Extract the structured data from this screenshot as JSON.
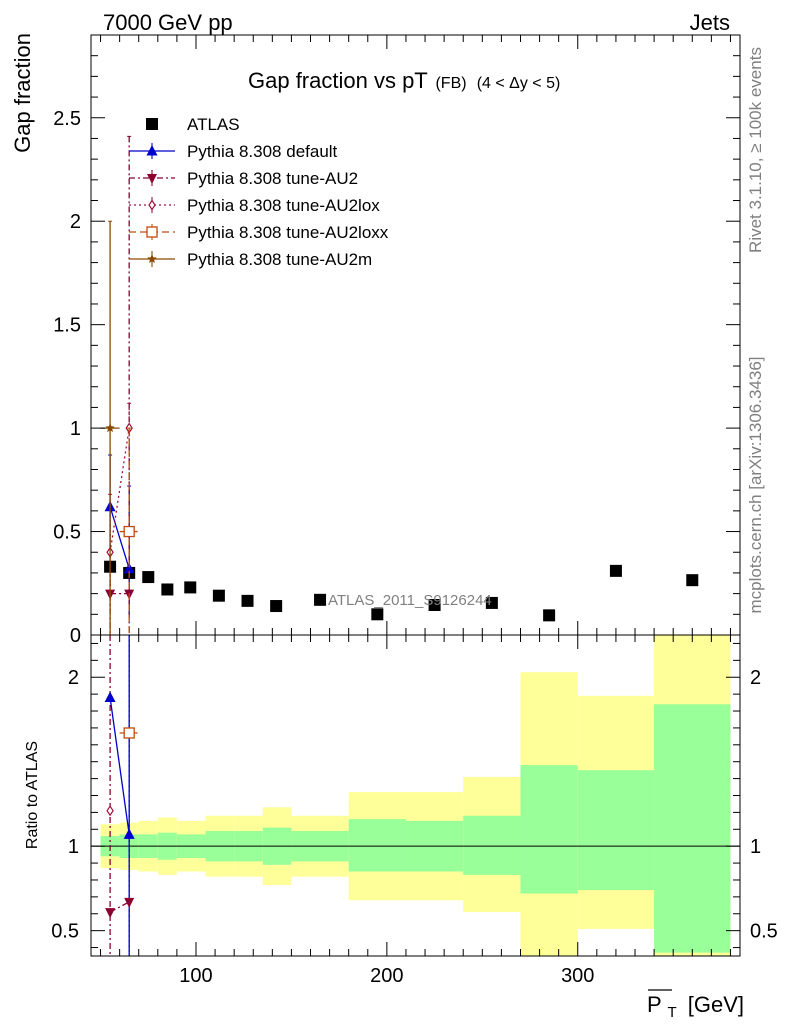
{
  "header": {
    "left": "7000 GeV pp",
    "right": "Jets"
  },
  "side_labels": {
    "upper": "Rivet 3.1.10, ≥ 100k events",
    "lower": "mcplots.cern.ch [arXiv:1306.3436]"
  },
  "watermark": "ATLAS_2011_S9126244",
  "colors": {
    "atlas": "#000000",
    "default": "#0000cc",
    "au2": "#8b0030",
    "au2lox": "#a0103a",
    "au2loxx": "#c04a10",
    "au2m": "#8b4a00",
    "band_inner": "#99ff99",
    "band_outer": "#ffff99"
  },
  "chart_data": [
    {
      "type": "scatter",
      "title": "Gap fraction vs pT",
      "title_sub": "(FB)",
      "title_range": "(4 < Δy < 5)",
      "xlabel": "P_T [GeV]",
      "xlabel_main": "P",
      "xlabel_sub": "T",
      "xlabel_unit": "[GeV]",
      "ylabel": "Gap fraction",
      "xlim": [
        45,
        385
      ],
      "ylim": [
        0,
        2.9
      ],
      "yticks": [
        0,
        0.5,
        1,
        1.5,
        2,
        2.5
      ],
      "ytick_labels": [
        "0",
        "0.5",
        "1",
        "1.5",
        "2",
        "2.5"
      ],
      "xticks": [
        100,
        200,
        300
      ],
      "legend_position": "top-left",
      "legend": [
        {
          "key": "atlas",
          "label": "ATLAS"
        },
        {
          "key": "default",
          "label": "Pythia 8.308 default"
        },
        {
          "key": "au2",
          "label": "Pythia 8.308 tune-AU2"
        },
        {
          "key": "au2lox",
          "label": "Pythia 8.308 tune-AU2lox"
        },
        {
          "key": "au2loxx",
          "label": "Pythia 8.308 tune-AU2loxx"
        },
        {
          "key": "au2m",
          "label": "Pythia 8.308 tune-AU2m"
        }
      ],
      "series": [
        {
          "key": "atlas",
          "name": "ATLAS",
          "x": [
            55,
            65,
            75,
            85,
            97,
            112,
            127,
            142,
            165,
            195,
            225,
            255,
            285,
            320,
            360
          ],
          "y": [
            0.33,
            0.3,
            0.28,
            0.22,
            0.23,
            0.19,
            0.165,
            0.14,
            0.17,
            0.1,
            0.145,
            0.155,
            0.095,
            0.31,
            0.265
          ]
        },
        {
          "key": "default",
          "name": "Pythia 8.308 default",
          "x": [
            55,
            65
          ],
          "y": [
            0.62,
            0.32
          ],
          "yerr_low": [
            0.25,
            0.22
          ],
          "yerr_high": [
            0.25,
            0.4
          ]
        },
        {
          "key": "au2",
          "name": "Pythia 8.308 tune-AU2",
          "x": [
            55,
            65
          ],
          "y": [
            0.2,
            0.2
          ],
          "yerr_low": [
            0.2,
            0.2
          ],
          "yerr_high": [
            0.2,
            2.21
          ]
        },
        {
          "key": "au2lox",
          "name": "Pythia 8.308 tune-AU2lox",
          "x": [
            55,
            65
          ],
          "y": [
            0.4,
            1.0
          ],
          "yerr_low": [
            0.28,
            0.6
          ],
          "yerr_high": [
            0.28,
            0.12
          ]
        },
        {
          "key": "au2loxx",
          "name": "Pythia 8.308 tune-AU2loxx",
          "x": [
            65
          ],
          "y": [
            0.5
          ],
          "xerr": [
            5
          ],
          "yerr_low": [
            0.5
          ],
          "yerr_high": [
            0.5
          ]
        },
        {
          "key": "au2m",
          "name": "Pythia 8.308 tune-AU2m",
          "x": [
            55
          ],
          "y": [
            1.0
          ],
          "xerr": [
            5
          ],
          "yerr_low": [
            1.0
          ],
          "yerr_high": [
            1.0
          ]
        }
      ]
    },
    {
      "type": "line",
      "ylabel": "Ratio to ATLAS",
      "xlim": [
        45,
        385
      ],
      "ylim": [
        0.35,
        2.25
      ],
      "yticks": [
        0.5,
        1,
        2
      ],
      "ytick_labels": [
        "0.5",
        "1",
        "2"
      ],
      "xticks": [
        100,
        200,
        300
      ],
      "xtick_labels": [
        "100",
        "200",
        "300"
      ],
      "reference_line": 1,
      "bands": [
        {
          "x0": 50,
          "x1": 60,
          "inner": [
            0.94,
            1.06
          ],
          "outer": [
            0.87,
            1.13
          ]
        },
        {
          "x0": 60,
          "x1": 70,
          "inner": [
            0.93,
            1.07
          ],
          "outer": [
            0.86,
            1.14
          ]
        },
        {
          "x0": 70,
          "x1": 80,
          "inner": [
            0.93,
            1.07
          ],
          "outer": [
            0.85,
            1.15
          ]
        },
        {
          "x0": 80,
          "x1": 90,
          "inner": [
            0.92,
            1.08
          ],
          "outer": [
            0.83,
            1.17
          ]
        },
        {
          "x0": 90,
          "x1": 105,
          "inner": [
            0.93,
            1.07
          ],
          "outer": [
            0.85,
            1.15
          ]
        },
        {
          "x0": 105,
          "x1": 120,
          "inner": [
            0.91,
            1.09
          ],
          "outer": [
            0.82,
            1.18
          ]
        },
        {
          "x0": 120,
          "x1": 135,
          "inner": [
            0.91,
            1.09
          ],
          "outer": [
            0.82,
            1.18
          ]
        },
        {
          "x0": 135,
          "x1": 150,
          "inner": [
            0.89,
            1.11
          ],
          "outer": [
            0.77,
            1.23
          ]
        },
        {
          "x0": 150,
          "x1": 180,
          "inner": [
            0.91,
            1.09
          ],
          "outer": [
            0.82,
            1.18
          ]
        },
        {
          "x0": 180,
          "x1": 210,
          "inner": [
            0.85,
            1.16
          ],
          "outer": [
            0.68,
            1.32
          ]
        },
        {
          "x0": 210,
          "x1": 240,
          "inner": [
            0.85,
            1.15
          ],
          "outer": [
            0.68,
            1.32
          ]
        },
        {
          "x0": 240,
          "x1": 270,
          "inner": [
            0.83,
            1.18
          ],
          "outer": [
            0.61,
            1.41
          ]
        },
        {
          "x0": 270,
          "x1": 300,
          "inner": [
            0.72,
            1.48
          ],
          "outer": [
            0.35,
            2.03
          ]
        },
        {
          "x0": 300,
          "x1": 340,
          "inner": [
            0.74,
            1.45
          ],
          "outer": [
            0.51,
            1.89
          ]
        },
        {
          "x0": 340,
          "x1": 380,
          "inner": [
            0.37,
            1.84
          ],
          "outer": [
            0.35,
            2.25
          ]
        }
      ],
      "series": [
        {
          "key": "default",
          "name": "Pythia 8.308 default",
          "x": [
            55,
            65
          ],
          "y": [
            1.88,
            1.07
          ]
        },
        {
          "key": "au2",
          "name": "Pythia 8.308 tune-AU2",
          "x": [
            55,
            65
          ],
          "y": [
            0.61,
            0.67
          ]
        },
        {
          "key": "au2lox",
          "name": "Pythia 8.308 tune-AU2lox",
          "x": [
            55
          ],
          "y": [
            1.21
          ]
        },
        {
          "key": "au2loxx",
          "name": "Pythia 8.308 tune-AU2loxx",
          "x": [
            65
          ],
          "y": [
            1.67
          ]
        }
      ]
    }
  ]
}
